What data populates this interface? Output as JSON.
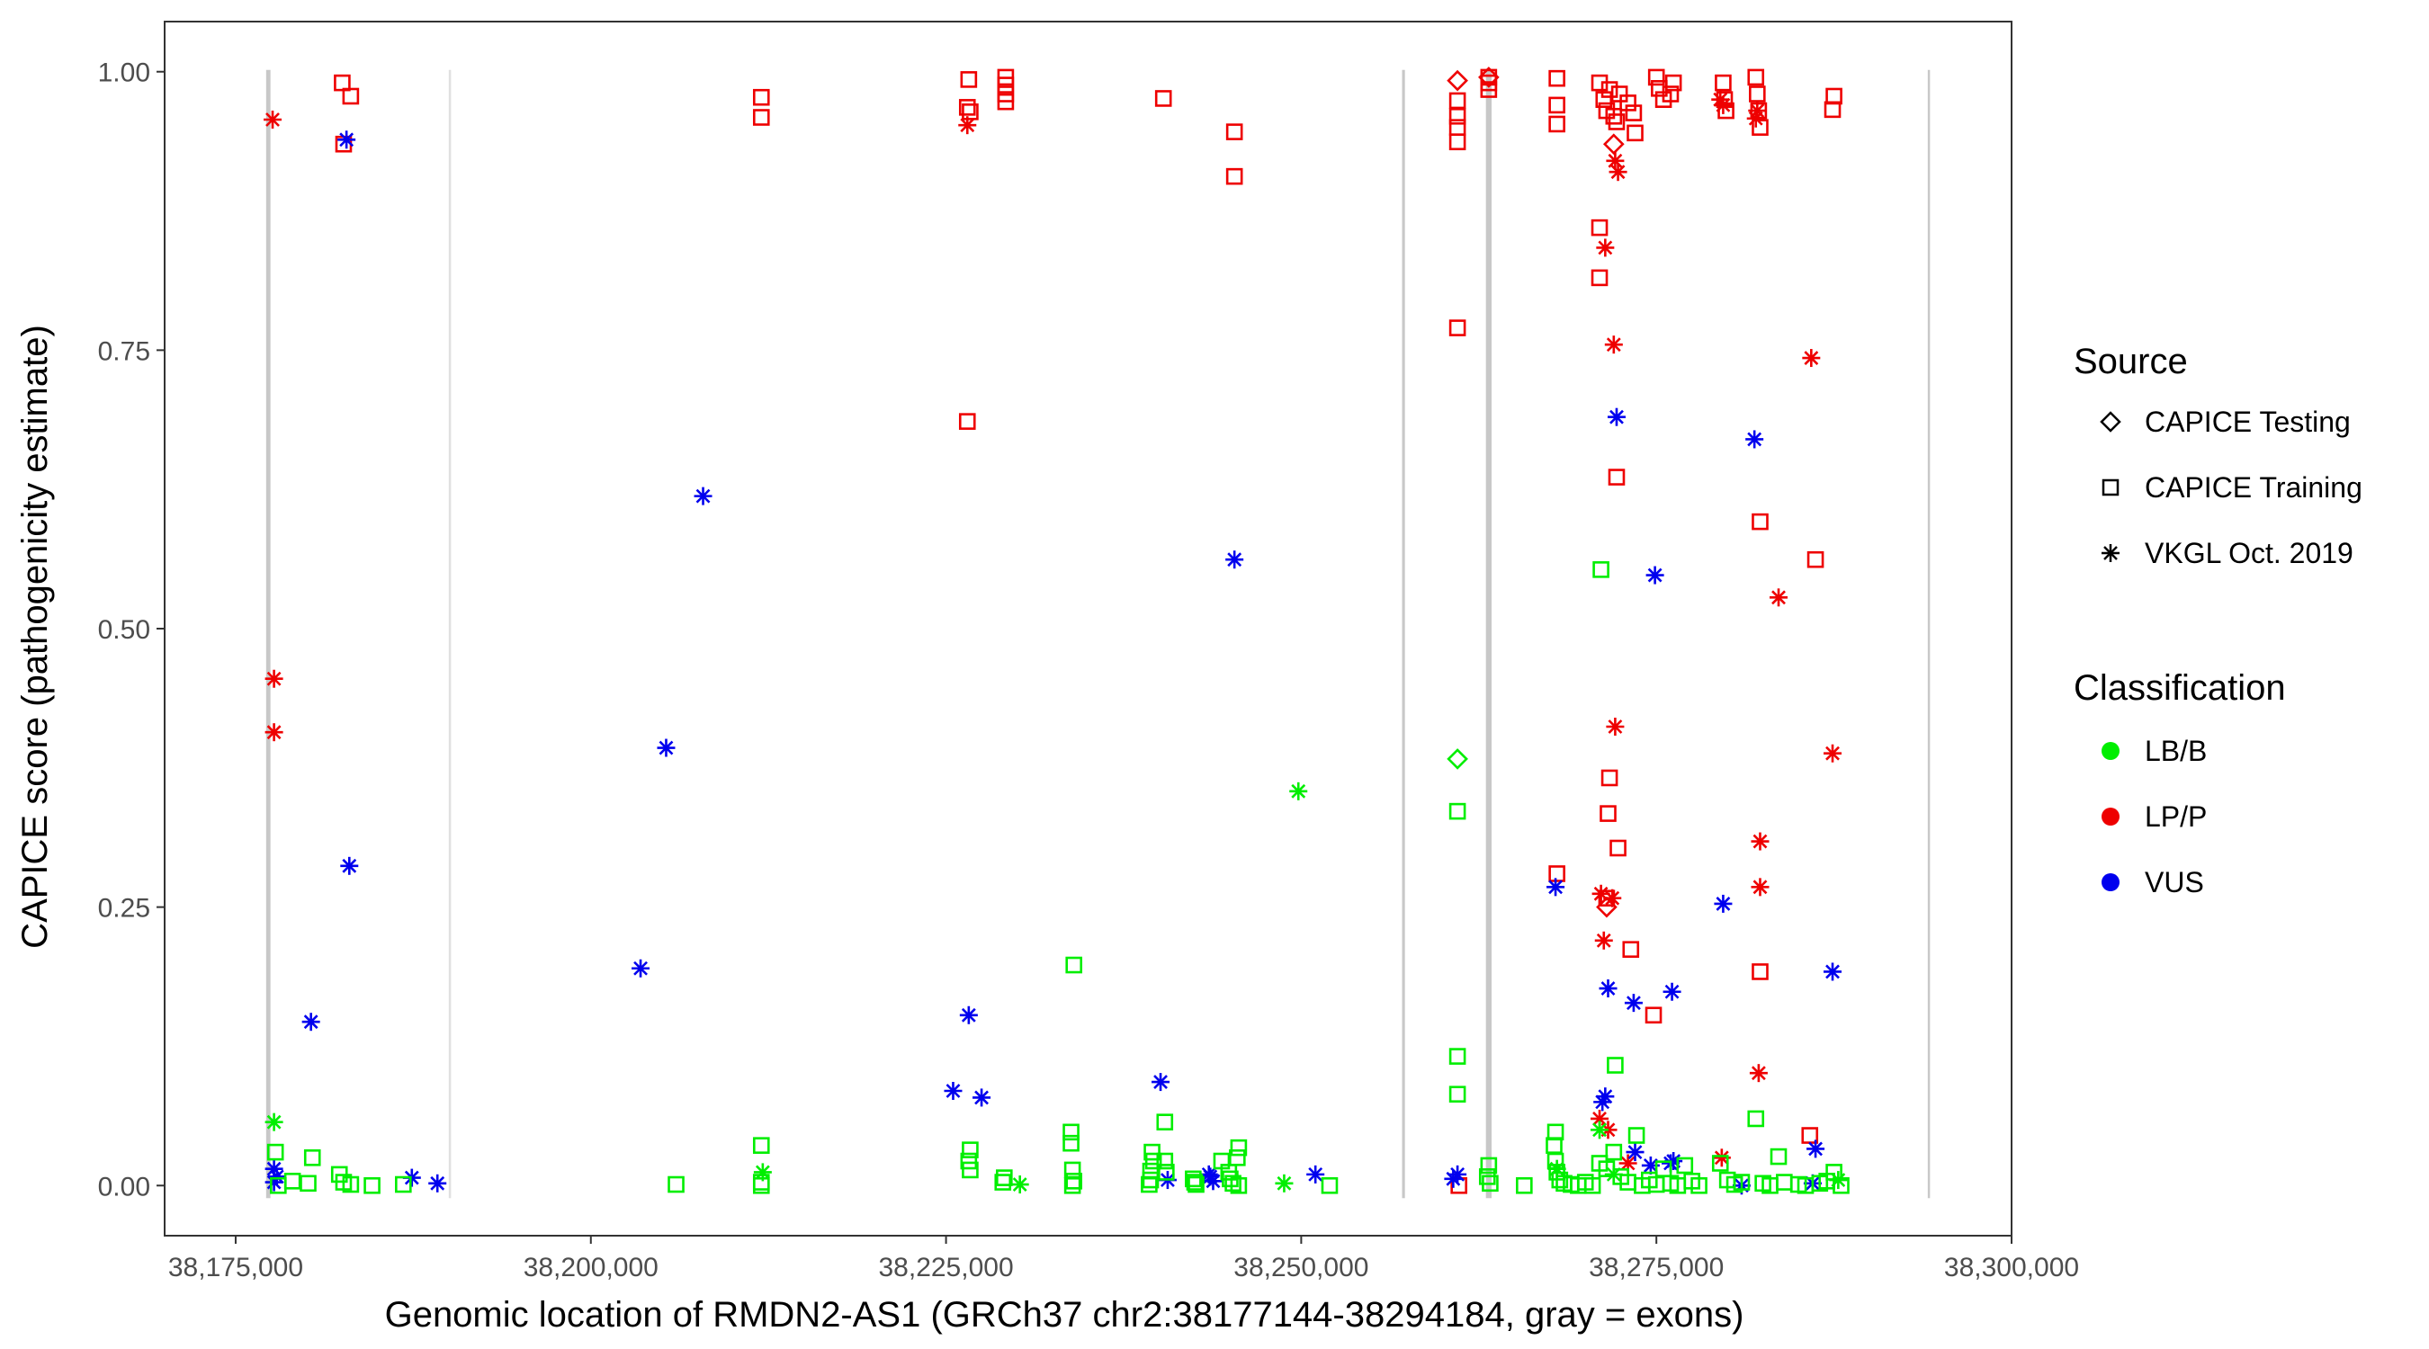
{
  "colors": {
    "LB/B": "#00ee00",
    "LP/P": "#ee0000",
    "VUS": "#0000ee",
    "exon": "#c8c8c8",
    "frame": "#333333"
  },
  "chart_data": {
    "type": "scatter",
    "xlabel": "Genomic location of RMDN2-AS1 (GRCh37 chr2:38177144-38294184, gray = exons)",
    "ylabel": "CAPICE score (pathogenicity estimate)",
    "xlim": [
      38170000,
      38300000
    ],
    "ylim": [
      -0.045,
      1.045
    ],
    "x_ticks": [
      38175000,
      38200000,
      38225000,
      38250000,
      38275000,
      38300000
    ],
    "x_tick_labels": [
      "38,175,000",
      "38,200,000",
      "38,225,000",
      "38,250,000",
      "38,275,000",
      "38,300,000"
    ],
    "y_ticks": [
      0,
      0.25,
      0.5,
      0.75,
      1
    ],
    "y_tick_labels": [
      "0.00",
      "0.25",
      "0.50",
      "0.75",
      "1.00"
    ],
    "exons": [
      {
        "start": 38177144,
        "end": 38177450,
        "color": "#c8c8c8"
      },
      {
        "start": 38190000,
        "end": 38190050,
        "color": "#e0e0e0"
      },
      {
        "start": 38257100,
        "end": 38257300,
        "color": "#c8c8c8"
      },
      {
        "start": 38263000,
        "end": 38263400,
        "color": "#c8c8c8"
      },
      {
        "start": 38294100,
        "end": 38294184,
        "color": "#c8c8c8"
      }
    ],
    "legend": {
      "source_title": "Source",
      "source_items": [
        {
          "label": "CAPICE Testing",
          "shape": "diamond"
        },
        {
          "label": "CAPICE Training",
          "shape": "square"
        },
        {
          "label": "VKGL Oct. 2019",
          "shape": "asterisk"
        }
      ],
      "class_title": "Classification",
      "class_items": [
        {
          "label": "LB/B",
          "color": "#00ee00"
        },
        {
          "label": "LP/P",
          "color": "#ee0000"
        },
        {
          "label": "VUS",
          "color": "#0000ee"
        }
      ]
    },
    "series": [
      {
        "name": "CAPICE Training / LP/P",
        "shape": "square",
        "classification": "LP/P",
        "points": [
          [
            38182500,
            0.99
          ],
          [
            38183100,
            0.978
          ],
          [
            38182600,
            0.935
          ],
          [
            38212000,
            0.977
          ],
          [
            38212000,
            0.959
          ],
          [
            38226600,
            0.993
          ],
          [
            38226500,
            0.968
          ],
          [
            38226700,
            0.964
          ],
          [
            38226500,
            0.686
          ],
          [
            38229200,
            0.995
          ],
          [
            38229200,
            0.988
          ],
          [
            38229200,
            0.98
          ],
          [
            38229200,
            0.973
          ],
          [
            38240300,
            0.976
          ],
          [
            38245300,
            0.946
          ],
          [
            38245300,
            0.906
          ],
          [
            38261000,
            0.974
          ],
          [
            38261000,
            0.96
          ],
          [
            38261000,
            0.95
          ],
          [
            38261000,
            0.937
          ],
          [
            38261000,
            0.77
          ],
          [
            38261100,
            0.0
          ],
          [
            38263200,
            0.995
          ],
          [
            38263200,
            0.99
          ],
          [
            38263200,
            0.984
          ],
          [
            38268000,
            0.994
          ],
          [
            38268000,
            0.97
          ],
          [
            38268000,
            0.953
          ],
          [
            38271000,
            0.99
          ],
          [
            38271300,
            0.975
          ],
          [
            38271500,
            0.965
          ],
          [
            38271700,
            0.984
          ],
          [
            38272000,
            0.96
          ],
          [
            38272200,
            0.955
          ],
          [
            38272400,
            0.98
          ],
          [
            38273000,
            0.972
          ],
          [
            38273400,
            0.963
          ],
          [
            38273500,
            0.945
          ],
          [
            38275000,
            0.995
          ],
          [
            38275200,
            0.985
          ],
          [
            38275500,
            0.975
          ],
          [
            38276000,
            0.98
          ],
          [
            38276200,
            0.99
          ],
          [
            38279700,
            0.99
          ],
          [
            38279800,
            0.975
          ],
          [
            38279900,
            0.965
          ],
          [
            38282000,
            0.995
          ],
          [
            38282100,
            0.98
          ],
          [
            38282200,
            0.965
          ],
          [
            38282300,
            0.95
          ],
          [
            38287500,
            0.978
          ],
          [
            38287400,
            0.966
          ],
          [
            38271000,
            0.86
          ],
          [
            38271000,
            0.815
          ],
          [
            38271700,
            0.366
          ],
          [
            38271600,
            0.334
          ],
          [
            38272300,
            0.303
          ],
          [
            38272200,
            0.636
          ],
          [
            38282300,
            0.596
          ],
          [
            38282300,
            0.192
          ],
          [
            38286200,
            0.562
          ],
          [
            38285800,
            0.045
          ],
          [
            38268000,
            0.28
          ],
          [
            38271500,
            0.258
          ],
          [
            38273200,
            0.212
          ],
          [
            38274800,
            0.153
          ]
        ]
      },
      {
        "name": "VKGL Oct. 2019 / LP/P",
        "shape": "asterisk",
        "classification": "LP/P",
        "points": [
          [
            38177600,
            0.957
          ],
          [
            38177700,
            0.455
          ],
          [
            38177700,
            0.407
          ],
          [
            38226500,
            0.952
          ],
          [
            38271400,
            0.842
          ],
          [
            38272100,
            0.92
          ],
          [
            38272300,
            0.91
          ],
          [
            38272000,
            0.755
          ],
          [
            38272100,
            0.412
          ],
          [
            38279500,
            0.975
          ],
          [
            38279700,
            0.97
          ],
          [
            38282100,
            0.965
          ],
          [
            38282000,
            0.958
          ],
          [
            38285900,
            0.743
          ],
          [
            38283600,
            0.528
          ],
          [
            38287400,
            0.388
          ],
          [
            38271100,
            0.262
          ],
          [
            38271900,
            0.258
          ],
          [
            38271300,
            0.22
          ],
          [
            38282300,
            0.309
          ],
          [
            38282300,
            0.268
          ],
          [
            38282200,
            0.101
          ],
          [
            38279600,
            0.025
          ],
          [
            38271000,
            0.06
          ],
          [
            38271600,
            0.05
          ],
          [
            38273000,
            0.02
          ]
        ]
      },
      {
        "name": "CAPICE Testing / LP/P",
        "shape": "diamond",
        "classification": "LP/P",
        "points": [
          [
            38261000,
            0.992
          ],
          [
            38263200,
            0.995
          ],
          [
            38272000,
            0.935
          ],
          [
            38271500,
            0.25
          ]
        ]
      },
      {
        "name": "CAPICE Testing / LB/B",
        "shape": "diamond",
        "classification": "LB/B",
        "points": [
          [
            38261000,
            0.383
          ]
        ]
      },
      {
        "name": "VKGL Oct. 2019 / VUS",
        "shape": "asterisk",
        "classification": "VUS",
        "points": [
          [
            38182800,
            0.939
          ],
          [
            38183000,
            0.287
          ],
          [
            38180300,
            0.147
          ],
          [
            38177700,
            0.015
          ],
          [
            38177900,
            0.008
          ],
          [
            38177700,
            0.003
          ],
          [
            38187400,
            0.007
          ],
          [
            38189200,
            0.002
          ],
          [
            38207900,
            0.619
          ],
          [
            38205300,
            0.393
          ],
          [
            38203500,
            0.195
          ],
          [
            38226600,
            0.153
          ],
          [
            38225500,
            0.085
          ],
          [
            38227500,
            0.079
          ],
          [
            38240100,
            0.093
          ],
          [
            38240600,
            0.005
          ],
          [
            38243500,
            0.01
          ],
          [
            38243800,
            0.004
          ],
          [
            38243600,
            0.008
          ],
          [
            38245300,
            0.562
          ],
          [
            38251000,
            0.01
          ],
          [
            38260700,
            0.006
          ],
          [
            38261000,
            0.01
          ],
          [
            38267900,
            0.268
          ],
          [
            38272200,
            0.69
          ],
          [
            38274900,
            0.548
          ],
          [
            38271600,
            0.177
          ],
          [
            38273400,
            0.164
          ],
          [
            38276100,
            0.174
          ],
          [
            38271200,
            0.075
          ],
          [
            38271400,
            0.08
          ],
          [
            38273500,
            0.03
          ],
          [
            38274600,
            0.018
          ],
          [
            38276000,
            0.02
          ],
          [
            38276200,
            0.022
          ],
          [
            38279700,
            0.253
          ],
          [
            38281900,
            0.67
          ],
          [
            38287400,
            0.192
          ],
          [
            38286200,
            0.033
          ],
          [
            38286000,
            0.002
          ],
          [
            38281000,
            0.0
          ]
        ]
      },
      {
        "name": "VKGL Oct. 2019 / LB/B",
        "shape": "asterisk",
        "classification": "LB/B",
        "points": [
          [
            38177700,
            0.057
          ],
          [
            38212100,
            0.012
          ],
          [
            38230200,
            0.001
          ],
          [
            38248800,
            0.002
          ],
          [
            38249800,
            0.354
          ],
          [
            38268000,
            0.015
          ],
          [
            38271000,
            0.05
          ],
          [
            38272000,
            0.01
          ],
          [
            38287800,
            0.005
          ]
        ]
      },
      {
        "name": "CAPICE Training / LB/B",
        "shape": "square",
        "classification": "LB/B",
        "points": [
          [
            38177800,
            0.03
          ],
          [
            38178000,
            0.0
          ],
          [
            38179000,
            0.004
          ],
          [
            38180100,
            0.002
          ],
          [
            38180400,
            0.025
          ],
          [
            38182300,
            0.01
          ],
          [
            38182600,
            0.003
          ],
          [
            38183100,
            0.001
          ],
          [
            38184600,
            0.0
          ],
          [
            38186800,
            0.001
          ],
          [
            38206000,
            0.001
          ],
          [
            38212000,
            0.036
          ],
          [
            38212000,
            0.003
          ],
          [
            38212000,
            0.0
          ],
          [
            38226700,
            0.032
          ],
          [
            38226600,
            0.022
          ],
          [
            38226700,
            0.014
          ],
          [
            38229100,
            0.007
          ],
          [
            38229000,
            0.003
          ],
          [
            38234000,
            0.198
          ],
          [
            38233800,
            0.048
          ],
          [
            38233800,
            0.038
          ],
          [
            38233900,
            0.014
          ],
          [
            38234000,
            0.004
          ],
          [
            38233900,
            0.0
          ],
          [
            38239500,
            0.03
          ],
          [
            38239600,
            0.022
          ],
          [
            38239400,
            0.013
          ],
          [
            38239400,
            0.005
          ],
          [
            38239300,
            0.001
          ],
          [
            38240400,
            0.057
          ],
          [
            38240400,
            0.022
          ],
          [
            38240500,
            0.012
          ],
          [
            38242400,
            0.006
          ],
          [
            38242600,
            0.001
          ],
          [
            38242500,
            0.003
          ],
          [
            38244400,
            0.022
          ],
          [
            38244900,
            0.012
          ],
          [
            38245000,
            0.006
          ],
          [
            38245200,
            0.002
          ],
          [
            38245600,
            0.0
          ],
          [
            38245500,
            0.025
          ],
          [
            38245600,
            0.034
          ],
          [
            38252000,
            0.0
          ],
          [
            38261000,
            0.336
          ],
          [
            38261000,
            0.116
          ],
          [
            38261000,
            0.082
          ],
          [
            38263200,
            0.018
          ],
          [
            38263100,
            0.008
          ],
          [
            38263300,
            0.002
          ],
          [
            38265700,
            0.0
          ],
          [
            38271100,
            0.553
          ],
          [
            38272100,
            0.108
          ],
          [
            38267900,
            0.048
          ],
          [
            38267800,
            0.036
          ],
          [
            38267900,
            0.022
          ],
          [
            38268000,
            0.012
          ],
          [
            38268200,
            0.005
          ],
          [
            38268500,
            0.002
          ],
          [
            38269000,
            0.001
          ],
          [
            38269500,
            0.0
          ],
          [
            38270000,
            0.003
          ],
          [
            38270500,
            0.0
          ],
          [
            38271000,
            0.02
          ],
          [
            38271500,
            0.015
          ],
          [
            38272000,
            0.03
          ],
          [
            38272500,
            0.008
          ],
          [
            38273000,
            0.003
          ],
          [
            38273600,
            0.045
          ],
          [
            38274000,
            0.0
          ],
          [
            38274500,
            0.005
          ],
          [
            38275000,
            0.001
          ],
          [
            38275500,
            0.015
          ],
          [
            38276000,
            0.002
          ],
          [
            38276500,
            0.0
          ],
          [
            38277000,
            0.018
          ],
          [
            38277500,
            0.004
          ],
          [
            38278000,
            0.0
          ],
          [
            38279500,
            0.02
          ],
          [
            38280000,
            0.005
          ],
          [
            38280500,
            0.001
          ],
          [
            38281000,
            0.003
          ],
          [
            38282000,
            0.06
          ],
          [
            38282500,
            0.002
          ],
          [
            38283000,
            0.0
          ],
          [
            38283600,
            0.026
          ],
          [
            38284000,
            0.003
          ],
          [
            38285000,
            0.001
          ],
          [
            38285500,
            0.0
          ],
          [
            38286500,
            0.002
          ],
          [
            38287000,
            0.004
          ],
          [
            38287500,
            0.012
          ],
          [
            38288000,
            0.0
          ]
        ]
      }
    ]
  }
}
